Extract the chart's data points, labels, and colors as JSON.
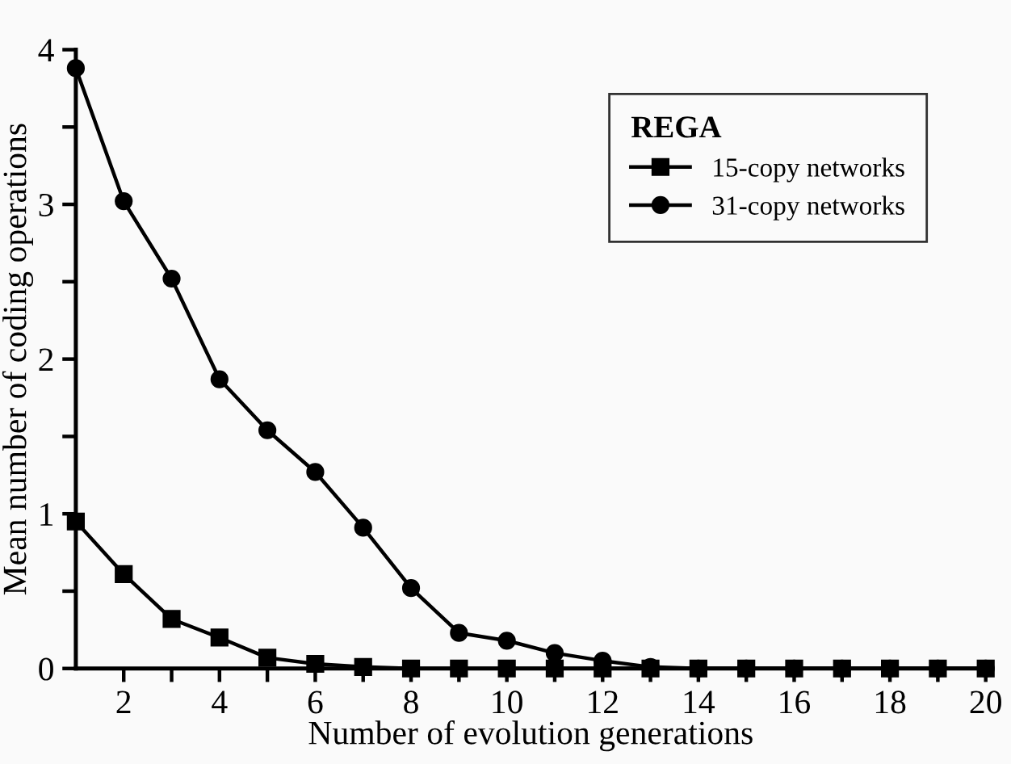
{
  "chart_data": {
    "type": "line",
    "xlabel": "Number of evolution generations",
    "ylabel": "Mean number of coding operations",
    "legend_title": "REGA",
    "legend": "top right",
    "grid": false,
    "line_style": "solid",
    "x": [
      1,
      2,
      3,
      4,
      5,
      6,
      7,
      8,
      9,
      10,
      11,
      12,
      13,
      14,
      15,
      16,
      17,
      18,
      19,
      20
    ],
    "xlim": [
      1,
      20
    ],
    "ylim": [
      0,
      4
    ],
    "xticks": [
      2,
      {
        "value": 3,
        "label": null
      },
      4,
      {
        "value": 5,
        "label": null
      },
      6,
      {
        "value": 7,
        "label": null
      },
      8,
      {
        "value": 9,
        "label": null
      },
      10,
      {
        "value": 11,
        "label": null
      },
      12,
      {
        "value": 13,
        "label": null
      },
      14,
      {
        "value": 15,
        "label": null
      },
      16,
      {
        "value": 17,
        "label": null
      },
      18,
      {
        "value": 19,
        "label": null
      },
      20
    ],
    "yticks": [
      0,
      {
        "value": 0.5,
        "label": null
      },
      1,
      {
        "value": 1.5,
        "label": null
      },
      2,
      {
        "value": 2.5,
        "label": null
      },
      3,
      {
        "value": 3.5,
        "label": null
      },
      4
    ],
    "series": [
      {
        "name": "15-copy networks",
        "color": "#000000",
        "marker": "square",
        "values": [
          0.95,
          0.61,
          0.32,
          0.2,
          0.07,
          0.03,
          0.01,
          0,
          0,
          0,
          0,
          0,
          0,
          0,
          0,
          0,
          0,
          0,
          0,
          0
        ]
      },
      {
        "name": "31-copy networks",
        "color": "#000000",
        "marker": "circle",
        "values": [
          3.88,
          3.02,
          2.52,
          1.87,
          1.54,
          1.27,
          0.91,
          0.52,
          0.23,
          0.18,
          0.1,
          0.05,
          0.01,
          0,
          0,
          0,
          0,
          0,
          0,
          0
        ]
      }
    ]
  }
}
